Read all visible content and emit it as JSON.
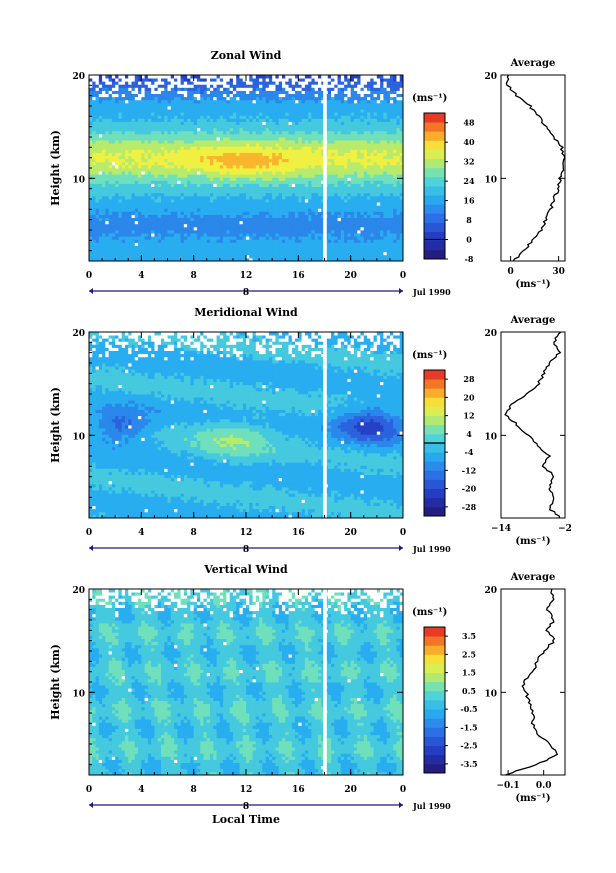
{
  "chart_data": [
    {
      "type": "heatmap",
      "title": "Zonal Wind",
      "xlabel": "",
      "ylabel": "Height (km)",
      "x_ticks": [
        "0",
        "4",
        "8",
        "12",
        "16",
        "20",
        "0"
      ],
      "y_ticks": [
        "10",
        "20"
      ],
      "ylim": [
        2,
        20
      ],
      "xlim": [
        0,
        24
      ],
      "date_axis": {
        "day": "8",
        "month_label": "Jul 1990"
      },
      "colorbar": {
        "units": "(ms⁻¹)",
        "levels": [
          "48",
          "40",
          "32",
          "24",
          "16",
          "8",
          "0",
          "-8"
        ],
        "range": [
          -8,
          52
        ],
        "zero_line_level": 0
      },
      "data_gap_hours": [
        17.9,
        18.1
      ],
      "profile": {
        "title": "Average",
        "xlabel": "(ms⁻¹)",
        "x_ticks": [
          "0",
          "30"
        ],
        "xlim": [
          -6,
          34
        ],
        "y_ticks": [
          "10",
          "20"
        ],
        "heights_km": [
          2.0,
          3.0,
          4.0,
          5.0,
          6.0,
          7.0,
          8.0,
          9.0,
          10.0,
          11.0,
          12.0,
          13.0,
          14.0,
          15.0,
          16.0,
          17.0,
          18.0,
          19.0,
          20.0
        ],
        "values": [
          2,
          8,
          14,
          19,
          22,
          25,
          27,
          30,
          31,
          33,
          33,
          32,
          27,
          22,
          18,
          12,
          4,
          -2,
          -2
        ]
      }
    },
    {
      "type": "heatmap",
      "title": "Meridional Wind",
      "xlabel": "",
      "ylabel": "Height (km)",
      "x_ticks": [
        "0",
        "4",
        "8",
        "12",
        "16",
        "20",
        "0"
      ],
      "y_ticks": [
        "10",
        "20"
      ],
      "ylim": [
        2,
        20
      ],
      "xlim": [
        0,
        24
      ],
      "date_axis": {
        "day": "8",
        "month_label": "Jul 1990"
      },
      "colorbar": {
        "units": "(ms⁻¹)",
        "levels": [
          "28",
          "20",
          "12",
          "4",
          "-4",
          "-12",
          "-20",
          "-28"
        ],
        "range": [
          -32,
          32
        ],
        "zero_line_level": 0
      },
      "data_gap_hours": [
        17.9,
        18.1
      ],
      "profile": {
        "title": "Average",
        "xlabel": "(ms⁻¹)",
        "x_ticks": [
          "−14",
          "−2"
        ],
        "xlim": [
          -14,
          -2
        ],
        "y_ticks": [
          "10",
          "20"
        ],
        "heights_km": [
          2.0,
          3.0,
          4.0,
          5.0,
          6.0,
          7.0,
          8.0,
          9.0,
          10.0,
          11.0,
          12.0,
          13.0,
          14.0,
          15.0,
          16.0,
          17.0,
          18.0,
          19.0,
          20.0
        ],
        "values": [
          -3,
          -5,
          -4,
          -5,
          -4,
          -6,
          -5,
          -7,
          -9,
          -11,
          -13,
          -12,
          -9,
          -7,
          -6,
          -5,
          -3,
          -4,
          -3
        ]
      }
    },
    {
      "type": "heatmap",
      "title": "Vertical Wind",
      "xlabel": "Local Time",
      "ylabel": "Height (km)",
      "x_ticks": [
        "0",
        "4",
        "8",
        "12",
        "16",
        "20",
        "0"
      ],
      "y_ticks": [
        "10",
        "20"
      ],
      "ylim": [
        2,
        20
      ],
      "xlim": [
        0,
        24
      ],
      "date_axis": {
        "day": "8",
        "month_label": "Jul 1990"
      },
      "colorbar": {
        "units": "(ms⁻¹)",
        "levels": [
          "3.5",
          "2.5",
          "1.5",
          "0.5",
          "-0.5",
          "-1.5",
          "-2.5",
          "-3.5"
        ],
        "range": [
          -4,
          4
        ]
      },
      "data_gap_hours": [
        17.9,
        18.1
      ],
      "profile": {
        "title": "Average",
        "xlabel": "(ms⁻¹)",
        "x_ticks": [
          "−0.1",
          "0.0"
        ],
        "xlim": [
          -0.12,
          0.06
        ],
        "y_ticks": [
          "10",
          "20"
        ],
        "heights_km": [
          2.0,
          3.0,
          4.0,
          5.0,
          6.0,
          7.0,
          8.0,
          9.0,
          10.0,
          11.0,
          12.0,
          13.0,
          14.0,
          15.0,
          16.0,
          17.0,
          18.0,
          19.0,
          20.0
        ],
        "values": [
          -0.11,
          -0.02,
          0.04,
          0.02,
          -0.02,
          -0.03,
          -0.03,
          -0.04,
          -0.05,
          -0.06,
          -0.03,
          -0.02,
          0.0,
          0.03,
          0.01,
          0.03,
          0.01,
          0.03,
          0.02
        ]
      }
    }
  ]
}
